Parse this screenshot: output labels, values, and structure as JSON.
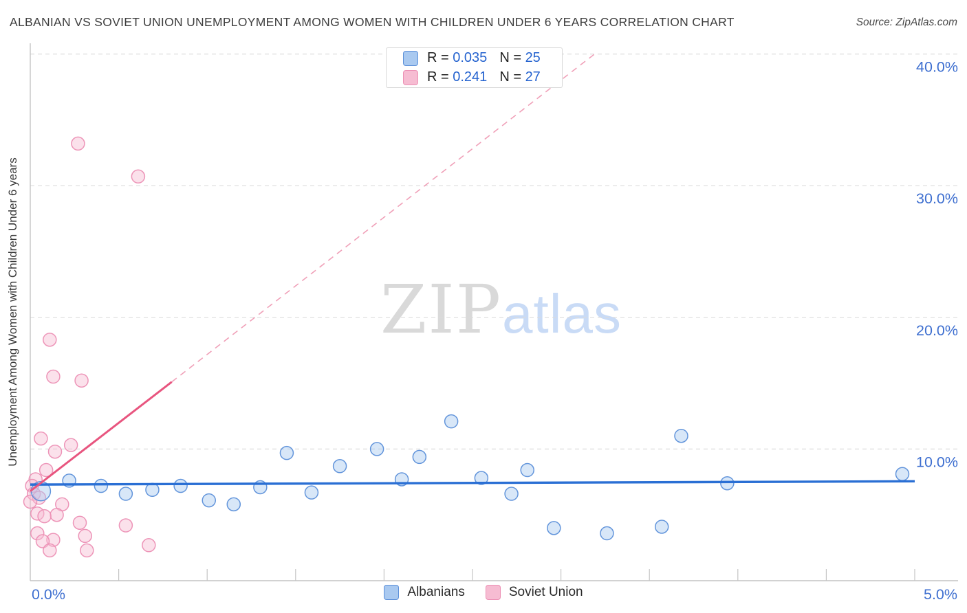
{
  "title": "ALBANIAN VS SOVIET UNION UNEMPLOYMENT AMONG WOMEN WITH CHILDREN UNDER 6 YEARS CORRELATION CHART",
  "source": "Source: ZipAtlas.com",
  "y_axis_label": "Unemployment Among Women with Children Under 6 years",
  "watermark": {
    "zip": "ZIP",
    "atlas": "atlas"
  },
  "legend_box": {
    "rows": [
      {
        "series": "Albanians",
        "r_label": "R = ",
        "r_value": "0.035",
        "n_label": "N = ",
        "n_value": "25"
      },
      {
        "series": "Soviet Union",
        "r_label": "R = ",
        "r_value": "0.241",
        "n_label": "N = ",
        "n_value": "27"
      }
    ]
  },
  "bottom_legend": [
    {
      "label": "Albanians"
    },
    {
      "label": "Soviet Union"
    }
  ],
  "axes": {
    "x_tick_labels": [
      {
        "label": "0.0%",
        "value": 0.0
      },
      {
        "label": "5.0%",
        "value": 5.0
      }
    ],
    "y_tick_labels": [
      {
        "label": "40.0%",
        "value": 40.0
      },
      {
        "label": "30.0%",
        "value": 30.0
      },
      {
        "label": "20.0%",
        "value": 20.0
      },
      {
        "label": "10.0%",
        "value": 10.0
      }
    ],
    "x_minor_tick_step": 0.5,
    "x_range": [
      0,
      5
    ],
    "y_range": [
      0,
      40.8
    ],
    "grid": "dashed-horizontal"
  },
  "chart_data": {
    "type": "scatter",
    "x_unit": "percent",
    "y_unit": "percent",
    "series": [
      {
        "name": "Albanians",
        "R": 0.035,
        "N": 25,
        "points": [
          [
            0.06,
            6.8,
            14
          ],
          [
            0.22,
            7.6
          ],
          [
            0.4,
            7.2
          ],
          [
            0.54,
            6.6
          ],
          [
            0.69,
            6.9
          ],
          [
            0.85,
            7.2
          ],
          [
            1.01,
            6.1
          ],
          [
            1.15,
            5.8
          ],
          [
            1.3,
            7.1
          ],
          [
            1.45,
            9.7
          ],
          [
            1.59,
            6.7
          ],
          [
            1.75,
            8.7
          ],
          [
            1.96,
            10.0
          ],
          [
            2.1,
            7.7
          ],
          [
            2.2,
            9.4
          ],
          [
            2.38,
            12.1
          ],
          [
            2.55,
            7.8
          ],
          [
            2.72,
            6.6
          ],
          [
            2.81,
            8.4
          ],
          [
            2.96,
            4.0
          ],
          [
            3.26,
            3.6
          ],
          [
            3.57,
            4.1
          ],
          [
            3.68,
            11.0
          ],
          [
            3.94,
            7.4
          ],
          [
            4.93,
            8.1
          ]
        ]
      },
      {
        "name": "Soviet Union",
        "R": 0.241,
        "N": 27,
        "points": [
          [
            0.27,
            33.2
          ],
          [
            0.61,
            30.7
          ],
          [
            0.11,
            18.3
          ],
          [
            0.13,
            15.5
          ],
          [
            0.29,
            15.2
          ],
          [
            0.06,
            10.8
          ],
          [
            0.23,
            10.3
          ],
          [
            0.14,
            9.8
          ],
          [
            0.09,
            8.4
          ],
          [
            0.03,
            7.7
          ],
          [
            0.01,
            7.2
          ],
          [
            0.02,
            6.6
          ],
          [
            0.05,
            6.3
          ],
          [
            0.0,
            6.0
          ],
          [
            0.18,
            5.8
          ],
          [
            0.04,
            5.1
          ],
          [
            0.15,
            5.0
          ],
          [
            0.08,
            4.9
          ],
          [
            0.28,
            4.4
          ],
          [
            0.54,
            4.2
          ],
          [
            0.04,
            3.6
          ],
          [
            0.31,
            3.4
          ],
          [
            0.13,
            3.1
          ],
          [
            0.07,
            3.0
          ],
          [
            0.67,
            2.7
          ],
          [
            0.11,
            2.3
          ],
          [
            0.32,
            2.3
          ]
        ]
      }
    ],
    "trend_lines": [
      {
        "series": "Albanians",
        "style": "solid",
        "from": [
          0.0,
          7.3
        ],
        "to": [
          5.0,
          7.55
        ]
      },
      {
        "series": "Soviet Union",
        "style": "solid",
        "from": [
          0.0,
          6.8
        ],
        "to": [
          0.8,
          15.1
        ]
      },
      {
        "series": "Soviet Union",
        "style": "dashed",
        "from": [
          0.8,
          15.1
        ],
        "to": [
          3.2,
          40.1
        ]
      }
    ]
  },
  "colors": {
    "albanians_fill": "#a9c9f0",
    "albanians_stroke": "#5b8fd9",
    "soviet_fill": "#f6bcd2",
    "soviet_stroke": "#ec8fb4",
    "albanians_trend": "#2a6fd4",
    "soviet_trend": "#e8557f",
    "soviet_trend_dashed": "#f0a0b8",
    "axis_text": "#3e6fd0",
    "grid": "#dcdcdc",
    "axis_line": "#c4c4c4"
  }
}
